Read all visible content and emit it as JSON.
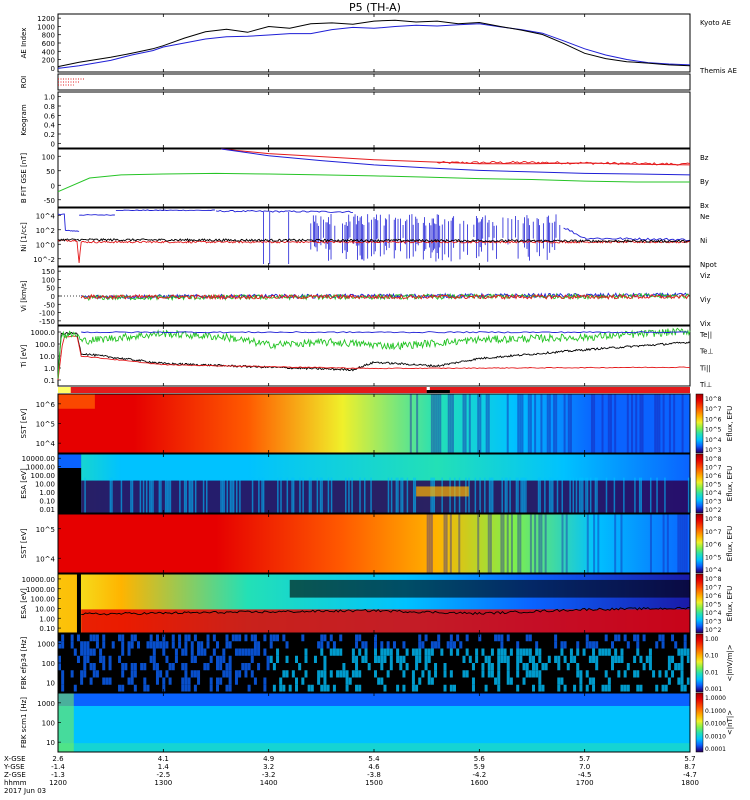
{
  "title": "P5 (TH-A)",
  "colors": {
    "red": "#e41a1c",
    "blue": "#1f1fd6",
    "green": "#26c426",
    "black": "#000000",
    "spec": [
      "#000000",
      "#2b0052",
      "#1a1aa8",
      "#0a63ff",
      "#00c2ff",
      "#23e0b6",
      "#7ff04a",
      "#f0f02a",
      "#ffb400",
      "#ff5a00",
      "#e60000",
      "#a00000"
    ]
  },
  "chart_data": {
    "type": "line",
    "x_range": [
      1200,
      1800
    ],
    "x_ticks": [
      "1200",
      "1300",
      "1400",
      "1500",
      "1600",
      "1700",
      "1800"
    ],
    "orbit": {
      "labels": [
        "X-GSE",
        "Y-GSE",
        "Z-GSE",
        "hhmm",
        "2017 Jun 03"
      ],
      "rows": [
        [
          "2.6",
          "4.1",
          "4.9",
          "5.4",
          "5.6",
          "5.7",
          "5.7"
        ],
        [
          "-1.4",
          "1.4",
          "3.2",
          "4.6",
          "5.9",
          "7.0",
          "8.7"
        ],
        [
          "-1.3",
          "-2.5",
          "-3.2",
          "-3.8",
          "-4.2",
          "-4.5",
          "-4.7"
        ],
        [
          "1200",
          "1300",
          "1400",
          "1500",
          "1600",
          "1700",
          "1800"
        ]
      ]
    },
    "panels": [
      {
        "key": "ae",
        "ylabel": "AE Index",
        "yticks": [
          "0",
          "200",
          "400",
          "600",
          "800",
          "1000",
          "1200"
        ],
        "ylim": [
          0,
          1300
        ],
        "legend": [
          {
            "t": "Kyoto AE",
            "c": "blue"
          },
          {
            "t": "Themis AE",
            "c": "black"
          }
        ],
        "series": [
          {
            "name": "Kyoto AE",
            "color": "blue",
            "x": [
              1200,
              1220,
              1250,
              1270,
              1290,
              1300,
              1320,
              1340,
              1360,
              1380,
              1400,
              1420,
              1440,
              1460,
              1480,
              1500,
              1520,
              1540,
              1560,
              1580,
              1600,
              1620,
              1640,
              1660,
              1680,
              1700,
              1720,
              1740,
              1760,
              1780,
              1800
            ],
            "y": [
              80,
              140,
              260,
              380,
              480,
              560,
              650,
              740,
              790,
              800,
              830,
              860,
              860,
              950,
              1000,
              980,
              1020,
              1050,
              1030,
              1060,
              1080,
              1010,
              950,
              870,
              700,
              520,
              380,
              280,
              210,
              180,
              160
            ]
          },
          {
            "name": "Themis AE",
            "color": "black",
            "x": [
              1200,
              1220,
              1250,
              1270,
              1290,
              1300,
              1320,
              1340,
              1360,
              1380,
              1400,
              1420,
              1440,
              1460,
              1480,
              1500,
              1520,
              1540,
              1560,
              1580,
              1600,
              1620,
              1640,
              1660,
              1680,
              1700,
              1720,
              1740,
              1760,
              1780,
              1800
            ],
            "y": [
              120,
              220,
              330,
              420,
              520,
              590,
              760,
              900,
              960,
              890,
              1020,
              980,
              1080,
              1100,
              1070,
              1140,
              1160,
              1120,
              1140,
              1080,
              1110,
              1020,
              940,
              840,
              640,
              420,
              300,
              230,
              200,
              160,
              140
            ]
          }
        ]
      },
      {
        "key": "roi",
        "ylabel": "ROI"
      },
      {
        "key": "keo",
        "ylabel": "Keogram",
        "yticks": [
          "0",
          "0.2",
          "0.4",
          "0.6",
          "0.8",
          "1.0"
        ],
        "ylim": [
          0,
          1
        ]
      },
      {
        "key": "bfit",
        "ylabel": "B FIT GSE [nT]",
        "yticks": [
          "-50",
          "0",
          "50",
          "100"
        ],
        "ylim": [
          -90,
          100
        ],
        "legend": [
          {
            "t": "Bz",
            "c": "red"
          },
          {
            "t": "By",
            "c": "green"
          },
          {
            "t": "Bx",
            "c": "blue"
          }
        ],
        "series": [
          {
            "name": "Bz",
            "color": "red",
            "x": [
              1355,
              1400,
              1450,
              1500,
              1550,
              1600,
              1650,
              1700,
              1750,
              1800
            ],
            "y": [
              100,
              85,
              75,
              65,
              58,
              52,
              52,
              54,
              50,
              48
            ]
          },
          {
            "name": "By",
            "color": "green",
            "x": [
              1200,
              1230,
              1260,
              1300,
              1350,
              1400,
              1450,
              1500,
              1550,
              1600,
              1650,
              1700,
              1750,
              1800
            ],
            "y": [
              -40,
              5,
              15,
              18,
              20,
              18,
              15,
              12,
              8,
              3,
              0,
              -5,
              -8,
              -8
            ]
          },
          {
            "name": "Bx",
            "color": "blue",
            "x": [
              1355,
              1400,
              1450,
              1500,
              1550,
              1600,
              1650,
              1700,
              1750,
              1800
            ],
            "y": [
              100,
              78,
              62,
              48,
              38,
              30,
              25,
              20,
              18,
              15
            ]
          }
        ]
      },
      {
        "key": "ni",
        "ylabel": "Ni [1/cc]",
        "yticks": [
          "10^-2",
          "10^0",
          "10^2",
          "10^4"
        ],
        "ylim": [
          -3,
          4.5
        ],
        "legend": [
          {
            "t": "Ne",
            "c": "red"
          },
          {
            "t": "Ni",
            "c": "black"
          },
          {
            "t": "Npot",
            "c": "blue"
          }
        ]
      },
      {
        "key": "vi",
        "ylabel": "Vi [km/s]",
        "yticks": [
          "-150",
          "-100",
          "-50",
          "0",
          "50",
          "100",
          "150"
        ],
        "ylim": [
          -170,
          170
        ],
        "legend": [
          {
            "t": "Viz",
            "c": "red"
          },
          {
            "t": "Viy",
            "c": "green"
          },
          {
            "t": "Vix",
            "c": "blue"
          }
        ]
      },
      {
        "key": "ti",
        "ylabel": "Ti [eV]",
        "yticks": [
          "0.1",
          "1.0",
          "10.0",
          "100.0",
          "1000.0"
        ],
        "ylim": [
          -1.3,
          3.5
        ],
        "legend": [
          {
            "t": "Te||",
            "c": "black"
          },
          {
            "t": "Te⊥",
            "c": "red"
          },
          {
            "t": "Ti||",
            "c": "green"
          },
          {
            "t": "Ti⊥",
            "c": "blue"
          }
        ]
      },
      {
        "key": "sst_i",
        "ylabel": "SST [eV]",
        "yticks": [
          "10^4",
          "10^5",
          "10^6"
        ],
        "cbar": "Eflux, EFU",
        "cbticks": [
          "10^8",
          "10^7",
          "10^6",
          "10^5",
          "10^4",
          "10^3"
        ]
      },
      {
        "key": "esa_i",
        "ylabel": "ESA [eV]",
        "yticks": [
          "0.01",
          "0.10",
          "1.00",
          "10.00",
          "100.00",
          "1000.00",
          "10000.00"
        ],
        "cbar": "Eflux, EFU",
        "cbticks": [
          "10^8",
          "10^7",
          "10^6",
          "10^5",
          "10^4",
          "10^3",
          "10^2"
        ]
      },
      {
        "key": "sst_e",
        "ylabel": "SST [eV]",
        "yticks": [
          "10^4",
          "10^5"
        ],
        "cbar": "Eflux, EFU",
        "cbticks": [
          "10^8",
          "10^7",
          "10^6",
          "10^5",
          "10^4"
        ]
      },
      {
        "key": "esa_e",
        "ylabel": "ESA [eV]",
        "yticks": [
          "0.10",
          "1.00",
          "10.00",
          "100.00",
          "1000.00",
          "10000.00"
        ],
        "cbar": "Eflux, EFU",
        "cbticks": [
          "10^8",
          "10^7",
          "10^6",
          "10^5",
          "10^4",
          "10^3",
          "10^2"
        ]
      },
      {
        "key": "fbk_e",
        "ylabel": "FBK efp34 [Hz]",
        "yticks": [
          "10",
          "100",
          "1000"
        ],
        "cbar": "<|mV/m|>",
        "cbticks": [
          "1.00",
          "0.10",
          "0.01",
          "0.001"
        ]
      },
      {
        "key": "fbk_b",
        "ylabel": "FBK scm1 [Hz]",
        "yticks": [
          "10",
          "100",
          "1000"
        ],
        "cbar": "<|nT|>",
        "cbticks": [
          "1.0000",
          "0.1000",
          "0.0100",
          "0.0010",
          "0.0001"
        ]
      }
    ]
  }
}
